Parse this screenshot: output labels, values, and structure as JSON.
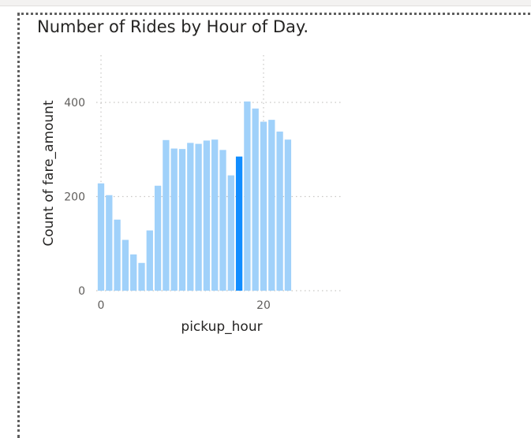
{
  "chart_data": {
    "type": "bar",
    "title": "Number of Rides by Hour of Day.",
    "xlabel": "pickup_hour",
    "ylabel": "Count of fare_amount",
    "x": [
      0,
      1,
      2,
      3,
      4,
      5,
      6,
      7,
      8,
      9,
      10,
      11,
      12,
      13,
      14,
      15,
      16,
      17,
      18,
      19,
      20,
      21,
      22,
      23
    ],
    "values": [
      228,
      203,
      151,
      108,
      77,
      59,
      128,
      223,
      320,
      302,
      301,
      314,
      312,
      319,
      321,
      299,
      245,
      285,
      402,
      387,
      359,
      363,
      338,
      321
    ],
    "highlighted_index": 17,
    "xticks": [
      "0",
      "20"
    ],
    "yticks": [
      "0",
      "200",
      "400"
    ],
    "xlim": [
      0,
      29
    ],
    "ylim": [
      0,
      400
    ],
    "grid": true,
    "colors": {
      "bar": "#a0d1fa",
      "highlight": "#118dff",
      "grid": "#c8c6c4"
    }
  }
}
